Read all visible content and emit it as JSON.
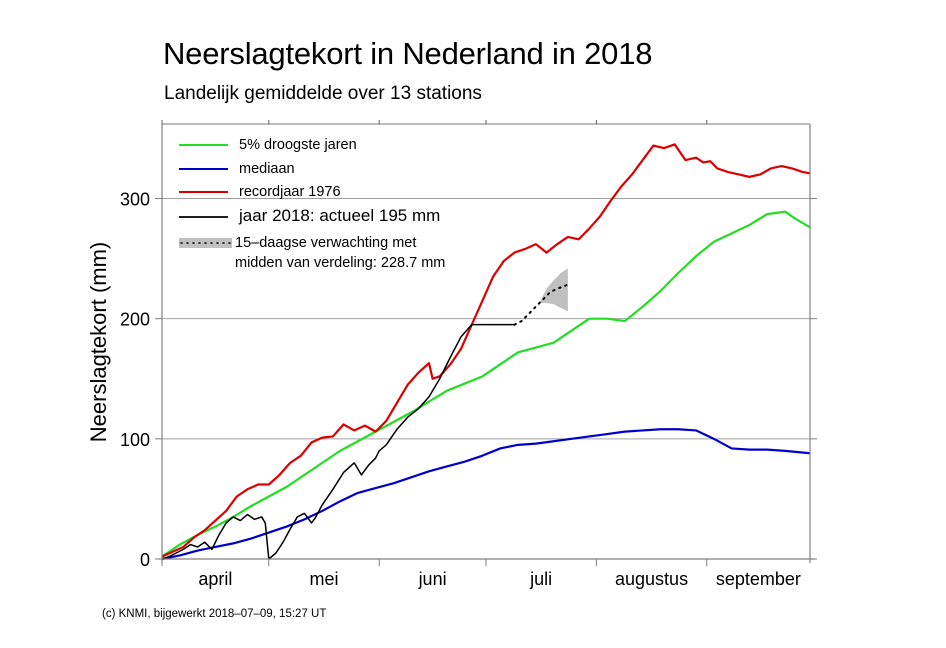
{
  "chart_data": {
    "type": "line",
    "title": "Neerslagtekort in Nederland in 2018",
    "subtitle": "Landelijk gemiddelde over 13 stations",
    "xlabel": "",
    "ylabel": "Neerslagtekort (mm)",
    "ylim": [
      0,
      362
    ],
    "xlim_days": [
      0,
      182
    ],
    "x_unit": "days since 1 April",
    "grid": "horizontal",
    "legend_position": "top-left",
    "yticks": [
      {
        "value": 0,
        "label": "0"
      },
      {
        "value": 100,
        "label": "100"
      },
      {
        "value": 200,
        "label": "200"
      },
      {
        "value": 300,
        "label": "300"
      }
    ],
    "months": [
      {
        "label": "april",
        "start_day": 0
      },
      {
        "label": "mei",
        "start_day": 30
      },
      {
        "label": "juni",
        "start_day": 61
      },
      {
        "label": "juli",
        "start_day": 91
      },
      {
        "label": "augustus",
        "start_day": 122
      },
      {
        "label": "september",
        "start_day": 153
      }
    ],
    "end_day": 182,
    "series": [
      {
        "name": "5% droogste jaren",
        "color": "#22dd22",
        "x": [
          0,
          5,
          10,
          15,
          20,
          25,
          30,
          35,
          40,
          45,
          50,
          55,
          60,
          65,
          70,
          75,
          80,
          85,
          90,
          95,
          100,
          105,
          110,
          115,
          120,
          125,
          130,
          135,
          140,
          145,
          150,
          155,
          160,
          165,
          170,
          175,
          178,
          182
        ],
        "values": [
          2,
          12,
          20,
          27,
          35,
          44,
          52,
          60,
          70,
          80,
          90,
          98,
          106,
          114,
          122,
          131,
          140,
          146,
          152,
          162,
          172,
          176,
          180,
          190,
          200,
          200,
          198,
          210,
          223,
          238,
          252,
          264,
          271,
          278,
          287,
          289,
          283,
          276
        ]
      },
      {
        "name": "mediaan",
        "color": "#0000cc",
        "x": [
          0,
          5,
          10,
          15,
          20,
          25,
          30,
          35,
          40,
          45,
          50,
          55,
          60,
          65,
          70,
          75,
          80,
          85,
          90,
          95,
          100,
          105,
          110,
          115,
          120,
          125,
          130,
          135,
          140,
          145,
          150,
          155,
          160,
          165,
          170,
          175,
          182
        ],
        "values": [
          0,
          3,
          7,
          10,
          13,
          17,
          22,
          27,
          33,
          40,
          48,
          55,
          59,
          63,
          68,
          73,
          77,
          81,
          86,
          92,
          95,
          96,
          98,
          100,
          102,
          104,
          106,
          107,
          108,
          108,
          107,
          100,
          92,
          91,
          91,
          90,
          88
        ]
      },
      {
        "name": "recordjaar 1976",
        "color": "#dd0000",
        "x": [
          0,
          3,
          6,
          9,
          12,
          15,
          18,
          21,
          24,
          27,
          30,
          33,
          36,
          39,
          42,
          45,
          48,
          51,
          54,
          57,
          60,
          63,
          66,
          69,
          72,
          75,
          76,
          78,
          81,
          84,
          87,
          90,
          93,
          96,
          99,
          102,
          105,
          108,
          111,
          114,
          117,
          120,
          123,
          126,
          129,
          132,
          135,
          138,
          141,
          144,
          147,
          150,
          152,
          154,
          156,
          159,
          162,
          165,
          168,
          171,
          174,
          177,
          180,
          182
        ],
        "values": [
          2,
          6,
          10,
          18,
          24,
          32,
          40,
          52,
          58,
          62,
          62,
          70,
          80,
          86,
          97,
          101,
          102,
          112,
          107,
          111,
          106,
          115,
          130,
          145,
          155,
          163,
          150,
          152,
          162,
          175,
          195,
          215,
          235,
          248,
          255,
          258,
          262,
          255,
          262,
          268,
          266,
          275,
          285,
          298,
          310,
          320,
          332,
          344,
          342,
          345,
          332,
          334,
          330,
          331,
          325,
          322,
          320,
          318,
          320,
          325,
          327,
          325,
          322,
          321
        ]
      },
      {
        "name": "jaar 2018: actueel 195 mm",
        "color": "#000000",
        "x": [
          0,
          2,
          4,
          6,
          8,
          10,
          12,
          14,
          16,
          18,
          20,
          22,
          24,
          26,
          28,
          29,
          30,
          32,
          34,
          36,
          38,
          40,
          42,
          43,
          45,
          48,
          51,
          54,
          56,
          58,
          60,
          61,
          63,
          66,
          69,
          72,
          75,
          78,
          81,
          84,
          87,
          90,
          93,
          96,
          99
        ],
        "values": [
          0,
          2,
          5,
          8,
          12,
          10,
          14,
          8,
          20,
          30,
          35,
          32,
          37,
          33,
          35,
          30,
          0,
          5,
          14,
          25,
          35,
          38,
          30,
          34,
          45,
          58,
          72,
          80,
          70,
          78,
          84,
          90,
          95,
          108,
          118,
          125,
          135,
          150,
          168,
          185,
          195,
          195,
          195,
          195,
          195
        ]
      }
    ],
    "observed_2018_end_day": 99,
    "forecast": {
      "name": "15-daagse verwachting met midden van verdeling: 228.7 mm",
      "median_x": [
        99,
        101,
        103,
        105,
        107,
        109,
        111,
        113,
        114
      ],
      "median_values": [
        195,
        198,
        204,
        210,
        216,
        222,
        225,
        227,
        228.7
      ],
      "band_x": [
        106,
        108,
        110,
        112,
        114
      ],
      "band_upper": [
        213,
        225,
        232,
        238,
        242
      ],
      "band_lower": [
        213,
        213,
        212,
        209,
        206
      ],
      "color": "#c0c0c0"
    },
    "legend": [
      {
        "label": "5% droogste jaren",
        "color": "#22dd22",
        "style": "solid"
      },
      {
        "label": "mediaan",
        "color": "#0000cc",
        "style": "solid"
      },
      {
        "label": "recordjaar 1976",
        "color": "#dd0000",
        "style": "solid"
      },
      {
        "label": "jaar 2018: actueel 195 mm",
        "color": "#000000",
        "style": "solid"
      },
      {
        "label": "15–daagse verwachting met",
        "label2": "midden van verdeling: 228.7 mm",
        "color": "#c0c0c0",
        "style": "band-dotted"
      }
    ]
  },
  "footer": "(c) KNMI, bijgewerkt 2018–07–09, 15:27 UT"
}
